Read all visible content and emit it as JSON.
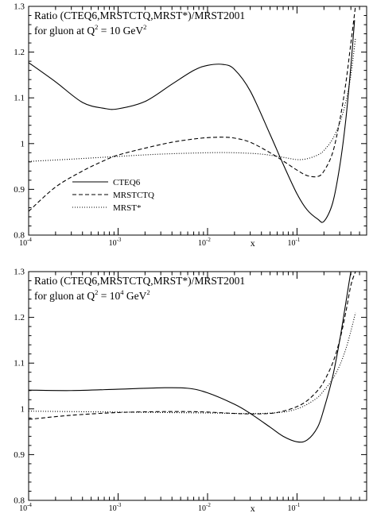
{
  "chart_data": [
    {
      "type": "line",
      "title_line1": "Ratio (CTEQ6,MRSTCTQ,MRST*)/MRST2001",
      "title_line2_prefix": "for gluon at Q",
      "title_line2_sup": "2",
      "title_line2_mid": " = 10 GeV",
      "title_line2_sup2": "2",
      "xlabel": "x",
      "x_scale": "log",
      "xlim": [
        0.0001,
        0.6
      ],
      "ylim": [
        0.8,
        1.3
      ],
      "grid": false,
      "legend_placement": "bottom-left",
      "x_ticks": [
        {
          "base": "10",
          "exp": "-4",
          "value": 0.0001
        },
        {
          "base": "10",
          "exp": "-3",
          "value": 0.001
        },
        {
          "base": "10",
          "exp": "-2",
          "value": 0.01
        },
        {
          "base": "10",
          "exp": "-1",
          "value": 0.1
        }
      ],
      "y_ticks": [
        {
          "label": "0.8",
          "value": 0.8
        },
        {
          "label": "0.9",
          "value": 0.9
        },
        {
          "label": "1",
          "value": 1.0
        },
        {
          "label": "1.1",
          "value": 1.1
        },
        {
          "label": "1.2",
          "value": 1.2
        },
        {
          "label": "1.3",
          "value": 1.3
        }
      ],
      "series": [
        {
          "name": "CTEQ6",
          "dash": "solid",
          "x": [
            0.0001,
            0.0002,
            0.0004,
            0.0007,
            0.001,
            0.002,
            0.004,
            0.007,
            0.01,
            0.015,
            0.02,
            0.03,
            0.05,
            0.07,
            0.1,
            0.13,
            0.17,
            0.2,
            0.25,
            0.3,
            0.35,
            0.4,
            0.44
          ],
          "y": [
            1.177,
            1.135,
            1.09,
            1.077,
            1.076,
            1.092,
            1.13,
            1.16,
            1.171,
            1.173,
            1.162,
            1.115,
            1.02,
            0.955,
            0.89,
            0.855,
            0.835,
            0.83,
            0.87,
            0.95,
            1.05,
            1.17,
            1.27
          ]
        },
        {
          "name": "MRSTCTQ",
          "dash": "dashed",
          "x": [
            0.0001,
            0.0002,
            0.0004,
            0.0007,
            0.001,
            0.002,
            0.004,
            0.007,
            0.01,
            0.015,
            0.02,
            0.03,
            0.05,
            0.07,
            0.1,
            0.13,
            0.17,
            0.2,
            0.25,
            0.3,
            0.35,
            0.4,
            0.45
          ],
          "y": [
            0.852,
            0.905,
            0.94,
            0.963,
            0.975,
            0.99,
            1.003,
            1.01,
            1.013,
            1.014,
            1.012,
            1.003,
            0.98,
            0.962,
            0.942,
            0.93,
            0.928,
            0.94,
            0.98,
            1.05,
            1.13,
            1.22,
            1.3
          ]
        },
        {
          "name": "MRST*",
          "dash": "dotted",
          "x": [
            0.0001,
            0.0003,
            0.001,
            0.003,
            0.01,
            0.02,
            0.04,
            0.07,
            0.1,
            0.13,
            0.17,
            0.2,
            0.25,
            0.3,
            0.35,
            0.4,
            0.45
          ],
          "y": [
            0.961,
            0.966,
            0.972,
            0.977,
            0.98,
            0.98,
            0.977,
            0.97,
            0.965,
            0.967,
            0.975,
            0.985,
            1.01,
            1.045,
            1.09,
            1.15,
            1.23
          ]
        }
      ]
    },
    {
      "type": "line",
      "title_line1": "Ratio (CTEQ6,MRSTCTQ,MRST*)/MRST2001",
      "title_line2_prefix": "for gluon at Q",
      "title_line2_sup": "2",
      "title_line2_mid": " = 10",
      "title_line2_sup2": "4",
      "title_line2_suffix": " GeV",
      "title_line2_sup3": "2",
      "xlabel": "x",
      "x_scale": "log",
      "xlim": [
        0.0001,
        0.6
      ],
      "ylim": [
        0.8,
        1.3
      ],
      "grid": false,
      "x_ticks": [
        {
          "base": "10",
          "exp": "-4",
          "value": 0.0001
        },
        {
          "base": "10",
          "exp": "-3",
          "value": 0.001
        },
        {
          "base": "10",
          "exp": "-2",
          "value": 0.01
        },
        {
          "base": "10",
          "exp": "-1",
          "value": 0.1
        }
      ],
      "y_ticks": [
        {
          "label": "0.8",
          "value": 0.8
        },
        {
          "label": "0.9",
          "value": 0.9
        },
        {
          "label": "1",
          "value": 1.0
        },
        {
          "label": "1.1",
          "value": 1.1
        },
        {
          "label": "1.2",
          "value": 1.2
        },
        {
          "label": "1.3",
          "value": 1.3
        }
      ],
      "series": [
        {
          "name": "CTEQ6",
          "dash": "solid",
          "x": [
            0.0001,
            0.0003,
            0.001,
            0.003,
            0.006,
            0.01,
            0.02,
            0.03,
            0.05,
            0.07,
            0.1,
            0.13,
            0.17,
            0.2,
            0.25,
            0.3,
            0.35,
            0.4,
            0.45
          ],
          "y": [
            1.041,
            1.04,
            1.043,
            1.046,
            1.045,
            1.035,
            1.01,
            0.99,
            0.96,
            0.94,
            0.928,
            0.932,
            0.96,
            1.0,
            1.07,
            1.15,
            1.23,
            1.3,
            1.35
          ]
        },
        {
          "name": "MRSTCTQ",
          "dash": "dashed",
          "x": [
            0.0001,
            0.0003,
            0.001,
            0.003,
            0.006,
            0.01,
            0.02,
            0.03,
            0.05,
            0.07,
            0.1,
            0.13,
            0.17,
            0.2,
            0.25,
            0.3,
            0.35,
            0.4,
            0.45
          ],
          "y": [
            0.977,
            0.986,
            0.992,
            0.994,
            0.994,
            0.993,
            0.99,
            0.989,
            0.99,
            0.995,
            1.005,
            1.018,
            1.04,
            1.06,
            1.1,
            1.15,
            1.21,
            1.27,
            1.3
          ]
        },
        {
          "name": "MRST*",
          "dash": "dotted",
          "x": [
            0.0001,
            0.0003,
            0.001,
            0.003,
            0.01,
            0.02,
            0.04,
            0.07,
            0.1,
            0.13,
            0.17,
            0.2,
            0.25,
            0.3,
            0.35,
            0.4,
            0.45
          ],
          "y": [
            0.995,
            0.994,
            0.993,
            0.992,
            0.991,
            0.99,
            0.99,
            0.993,
            1.0,
            1.01,
            1.025,
            1.04,
            1.065,
            1.095,
            1.13,
            1.17,
            1.21
          ]
        }
      ]
    }
  ]
}
